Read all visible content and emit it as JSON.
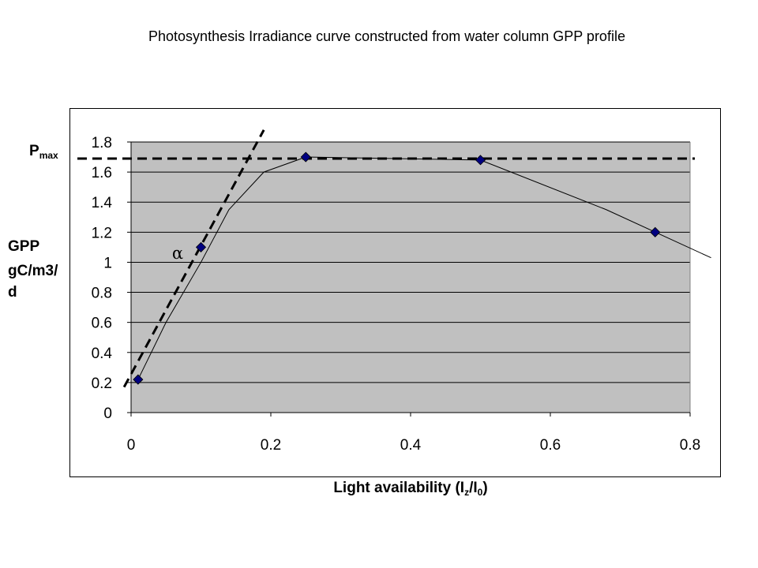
{
  "chart_data": {
    "type": "line",
    "title": "Photosynthesis Irradiance curve constructed from water column GPP profile",
    "xlabel": "Light availability (Iz/I0)",
    "ylabel": [
      "GPP",
      "gC/m3/",
      "d"
    ],
    "xlim": [
      0,
      0.8
    ],
    "ylim": [
      0,
      1.8
    ],
    "x_ticks": [
      "0",
      "0.2",
      "0.4",
      "0.6",
      "0.8"
    ],
    "y_ticks": [
      "0",
      "0.2",
      "0.4",
      "0.6",
      "0.8",
      "1",
      "1.2",
      "1.4",
      "1.6",
      "1.8"
    ],
    "grid": true,
    "background": "#c0c0c0",
    "marker_color": "#000080",
    "data_points": {
      "x": [
        0.01,
        0.1,
        0.25,
        0.5,
        0.75
      ],
      "y": [
        0.22,
        1.1,
        1.7,
        1.68,
        1.2
      ]
    },
    "fitted_curve": {
      "x": [
        0.01,
        0.05,
        0.1,
        0.14,
        0.19,
        0.25,
        0.5,
        0.68,
        0.83
      ],
      "y": [
        0.22,
        0.6,
        1.0,
        1.35,
        1.6,
        1.7,
        1.68,
        1.35,
        1.03
      ]
    },
    "pmax": {
      "label": "P",
      "sub": "max",
      "y": 1.69
    },
    "alpha": {
      "symbol": "α",
      "x": [
        -0.01,
        0.19
      ],
      "y": [
        0.17,
        1.88
      ]
    }
  }
}
